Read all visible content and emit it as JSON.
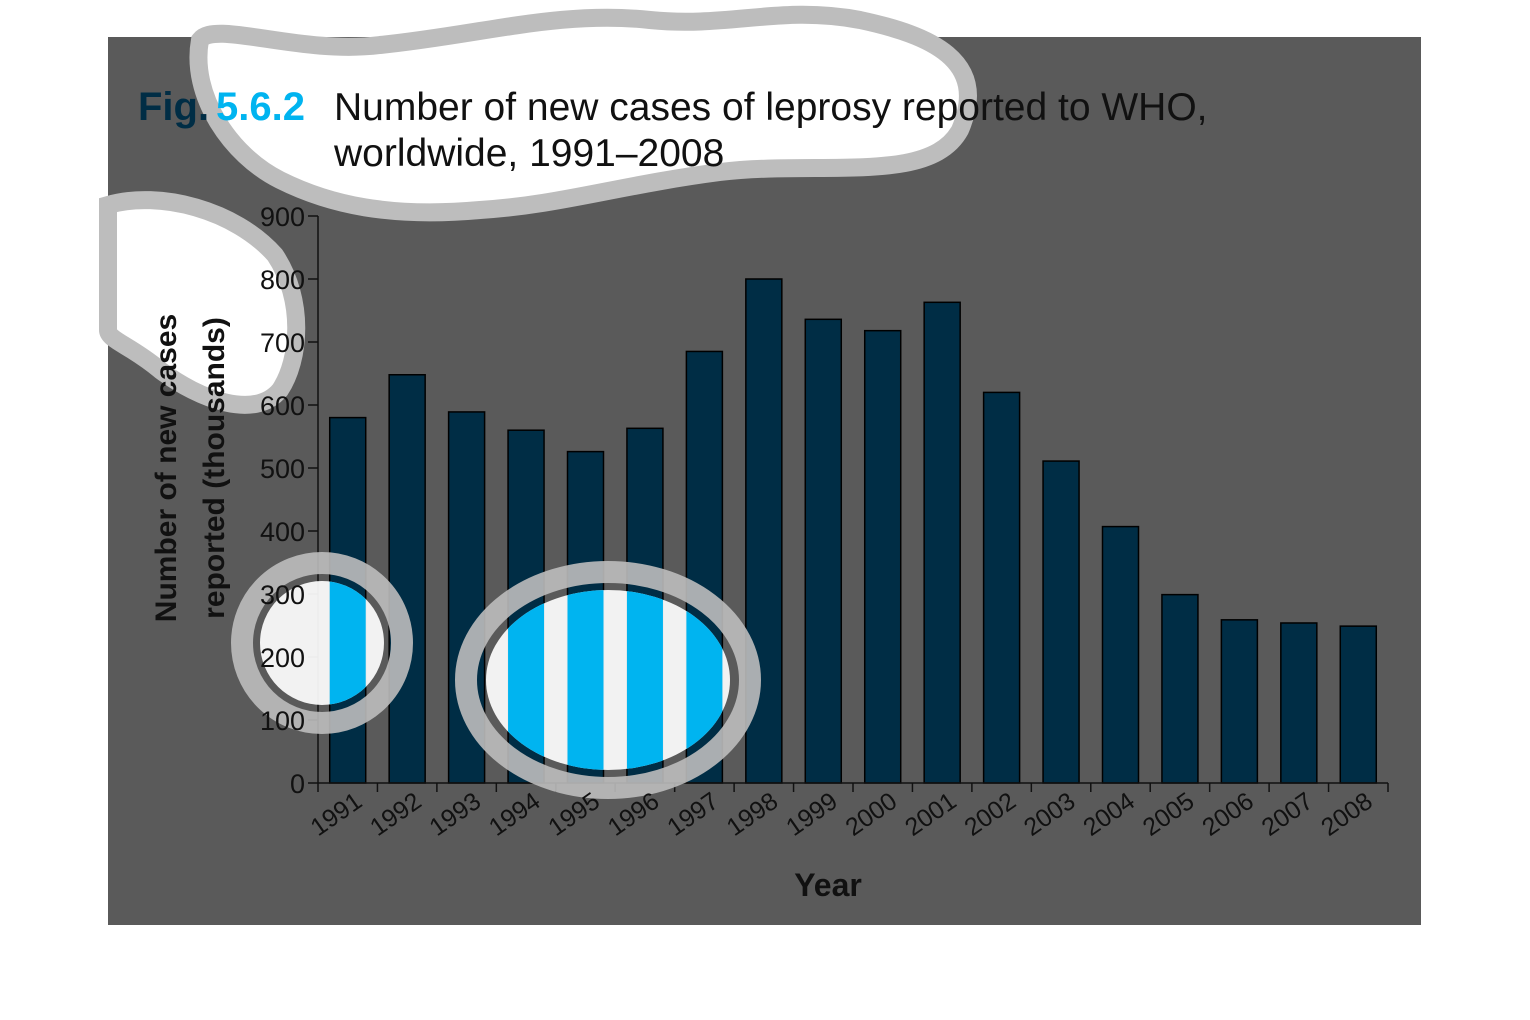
{
  "figure": {
    "label_prefix": "Fig.",
    "label_number": "5.6.2",
    "title_line1": "Number of new cases of leprosy reported to WHO,",
    "title_line2": "worldwide, 1991–2008"
  },
  "colors": {
    "panel": "#5a5a5a",
    "bar": "#002d45",
    "bar_stroke": "#000000",
    "accent": "#00b4f0",
    "label_dark": "#002d45",
    "blob_fill": "#ffffff",
    "blob_stroke": "#bdbdbd",
    "text": "#111111"
  },
  "chart_data": {
    "type": "bar",
    "title": "Number of new cases of leprosy reported to WHO, worldwide, 1991–2008",
    "xlabel": "Year",
    "ylabel_line1": "Number of new cases",
    "ylabel_line2": "reported (thousands)",
    "ylim": [
      0,
      900
    ],
    "yticks": [
      0,
      100,
      200,
      300,
      400,
      500,
      600,
      700,
      800,
      900
    ],
    "grid": false,
    "legend": "none",
    "categories": [
      "1991",
      "1992",
      "1993",
      "1994",
      "1995",
      "1996",
      "1997",
      "1998",
      "1999",
      "2000",
      "2001",
      "2002",
      "2003",
      "2004",
      "2005",
      "2006",
      "2007",
      "2008"
    ],
    "values": [
      580,
      648,
      589,
      560,
      526,
      563,
      685,
      800,
      736,
      718,
      763,
      620,
      511,
      407,
      299,
      259,
      254,
      249
    ]
  }
}
